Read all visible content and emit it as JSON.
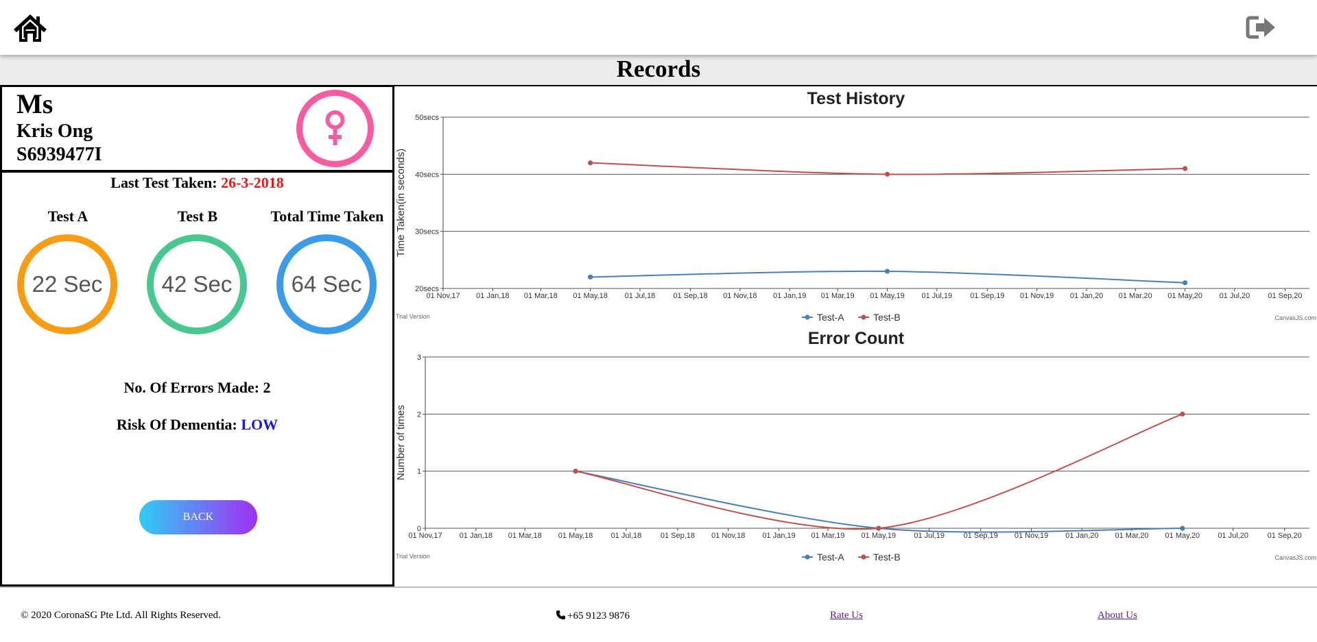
{
  "header": {
    "home_icon": "home-icon",
    "logout_icon": "sign-out-icon"
  },
  "page": {
    "title": "Records"
  },
  "patient": {
    "salutation": "Ms",
    "name": "Kris Ong",
    "nric": "S6939477I",
    "gender_icon": "female-symbol-icon",
    "gender_color": "#f75ca2"
  },
  "summary": {
    "last_test_label": "Last Test Taken:",
    "last_test_date": "26-3-2018",
    "test_a_label": "Test A",
    "test_a_value": "22 Sec",
    "test_b_label": "Test B",
    "test_b_value": "42 Sec",
    "total_label": "Total Time Taken",
    "total_value": "64 Sec",
    "errors_label": "No. Of Errors Made:",
    "errors_value": "2",
    "risk_label": "Risk Of Dementia:",
    "risk_value": "LOW",
    "back_label": "BACK"
  },
  "colors": {
    "test_a_ring": "#f89c14",
    "test_b_ring": "#48c78e",
    "total_ring": "#3c9be6",
    "series_a": "#4a7ebb",
    "series_b": "#c0504d"
  },
  "chart_data": [
    {
      "type": "line",
      "title": "Test History",
      "ylabel": "Time Taken(in seconds)",
      "ylim": [
        20,
        50
      ],
      "yticks": [
        "20secs",
        "30secs",
        "40secs",
        "50secs"
      ],
      "x_ticks": [
        "01 Nov,17",
        "01 Jan,18",
        "01 Mar,18",
        "01 May,18",
        "01 Jul,18",
        "01 Sep,18",
        "01 Nov,18",
        "01 Jan,19",
        "01 Mar,19",
        "01 May,19",
        "01 Jul,19",
        "01 Sep,19",
        "01 Nov,19",
        "01 Jan,20",
        "01 Mar,20",
        "01 May,20",
        "01 Jul,20",
        "01 Sep,20"
      ],
      "x": [
        "2018-05-01",
        "2019-05-01",
        "2020-05-01"
      ],
      "series": [
        {
          "name": "Test-A",
          "values": [
            22,
            23,
            21
          ]
        },
        {
          "name": "Test-B",
          "values": [
            42,
            40,
            41
          ]
        }
      ],
      "grid": true,
      "legend": "bottom-center",
      "watermark_left": "Trial Version",
      "watermark_right": "CanvasJS.com"
    },
    {
      "type": "line",
      "title": "Error Count",
      "ylabel": "Number of times",
      "ylim": [
        0,
        3
      ],
      "yticks": [
        "0",
        "1",
        "2",
        "3"
      ],
      "x_ticks": [
        "01 Nov,17",
        "01 Jan,18",
        "01 Mar,18",
        "01 May,18",
        "01 Jul,18",
        "01 Sep,18",
        "01 Nov,18",
        "01 Jan,19",
        "01 Mar,19",
        "01 May,19",
        "01 Jul,19",
        "01 Sep,19",
        "01 Nov,19",
        "01 Jan,20",
        "01 Mar,20",
        "01 May,20",
        "01 Jul,20",
        "01 Sep,20"
      ],
      "x": [
        "2018-05-01",
        "2019-05-01",
        "2020-05-01"
      ],
      "series": [
        {
          "name": "Test-A",
          "values": [
            1,
            0,
            0
          ]
        },
        {
          "name": "Test-B",
          "values": [
            1,
            0,
            2
          ]
        }
      ],
      "grid": true,
      "legend": "bottom-center",
      "watermark_left": "Trial Version",
      "watermark_right": "CanvasJS.com"
    }
  ],
  "footer": {
    "copyright": "© 2020 CoronaSG Pte Ltd. All Rights Reserved.",
    "phone_icon": "phone-icon",
    "phone": "+65 9123 9876",
    "rate_us": "Rate Us",
    "about_us": "About Us"
  }
}
